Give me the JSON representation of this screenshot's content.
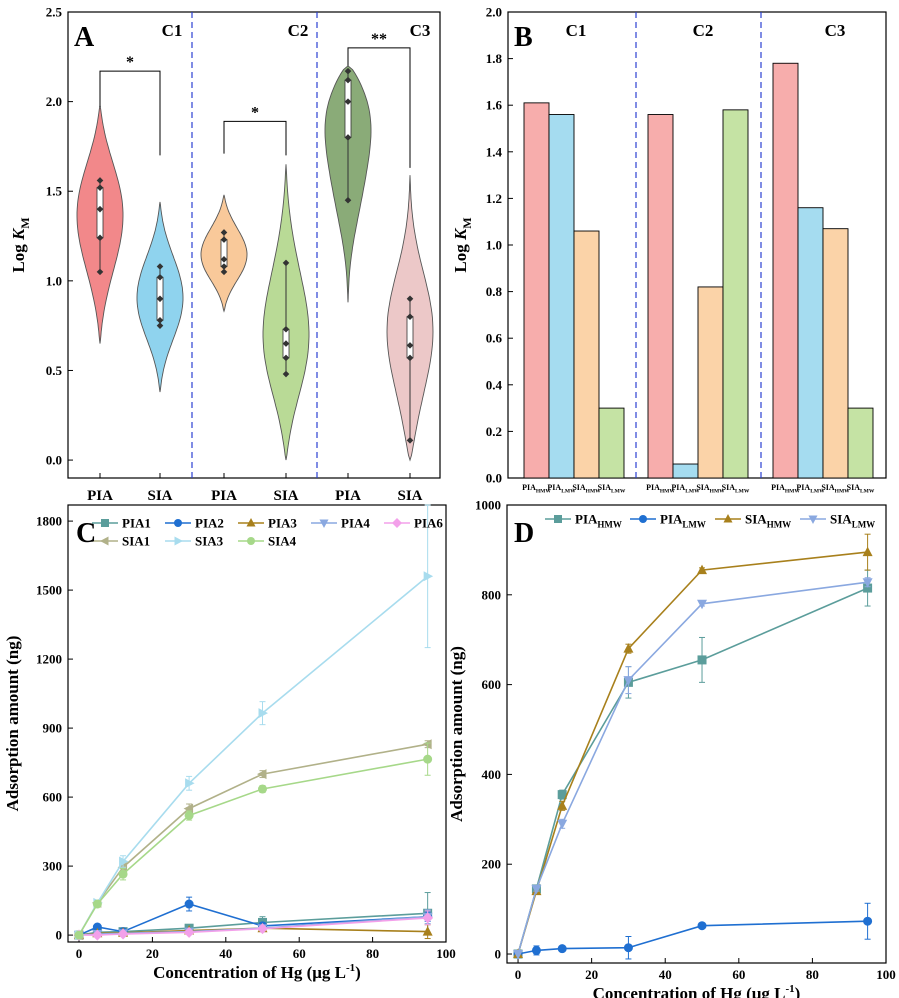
{
  "chart_data": [
    {
      "panel": "A",
      "type": "violin",
      "ylabel_main": "Log ",
      "ylabel_italic": "K",
      "ylabel_sub": "M",
      "ylim": [
        -0.1,
        2.5
      ],
      "yticks": [
        "0.0",
        "0.5",
        "1.0",
        "1.5",
        "2.0",
        "2.5"
      ],
      "groups": [
        "C1",
        "C2",
        "C3"
      ],
      "categories": [
        "PIA",
        "SIA",
        "PIA",
        "SIA",
        "PIA",
        "SIA"
      ],
      "colors": [
        "#f2888a",
        "#8fd3ee",
        "#f9c99a",
        "#b9da96",
        "#8aab78",
        "#ecc8c8"
      ],
      "violins": [
        {
          "group": "C1",
          "cat": "PIA",
          "color": "#f2888a",
          "min": 0.65,
          "max": 1.98,
          "points": [
            1.05,
            1.24,
            1.4,
            1.52,
            1.56
          ]
        },
        {
          "group": "C1",
          "cat": "SIA",
          "color": "#8fd3ee",
          "min": 0.38,
          "max": 1.44,
          "points": [
            0.75,
            0.78,
            0.9,
            1.02,
            1.08
          ]
        },
        {
          "group": "C2",
          "cat": "PIA",
          "color": "#f9c99a",
          "min": 0.83,
          "max": 1.48,
          "points": [
            1.05,
            1.08,
            1.12,
            1.23,
            1.27
          ]
        },
        {
          "group": "C2",
          "cat": "SIA",
          "color": "#b9da96",
          "min": 0.0,
          "max": 1.65,
          "points": [
            0.48,
            0.57,
            0.65,
            0.73,
            1.1
          ]
        },
        {
          "group": "C3",
          "cat": "PIA",
          "color": "#8aab78",
          "min": 0.88,
          "max": 2.2,
          "points": [
            1.45,
            1.8,
            2.0,
            2.12,
            2.17
          ]
        },
        {
          "group": "C3",
          "cat": "SIA",
          "color": "#ecc8c8",
          "min": 0.0,
          "max": 1.59,
          "points": [
            0.11,
            0.57,
            0.64,
            0.8,
            0.9
          ]
        }
      ],
      "significance": [
        {
          "group": "C1",
          "label": "*"
        },
        {
          "group": "C2",
          "label": "*"
        },
        {
          "group": "C3",
          "label": "**"
        }
      ]
    },
    {
      "panel": "B",
      "type": "bar",
      "ylabel_main": "Log ",
      "ylabel_italic": "K",
      "ylabel_sub": "M",
      "ylim": [
        0,
        2.0
      ],
      "yticks": [
        "0.0",
        "0.2",
        "0.4",
        "0.6",
        "0.8",
        "1.0",
        "1.2",
        "1.4",
        "1.6",
        "1.8",
        "2.0"
      ],
      "groups": [
        "C1",
        "C2",
        "C3"
      ],
      "categories": [
        {
          "main": "PIA",
          "sub": "HMW"
        },
        {
          "main": "PIA",
          "sub": "LMW"
        },
        {
          "main": "SIA",
          "sub": "HMW"
        },
        {
          "main": "SIA",
          "sub": "LMW"
        }
      ],
      "colors": [
        "#f7adac",
        "#a5dcf0",
        "#fbd3a8",
        "#c5e3a4"
      ],
      "values": [
        [
          1.61,
          1.56,
          1.06,
          0.3
        ],
        [
          1.56,
          0.06,
          0.82,
          1.58
        ],
        [
          1.78,
          1.16,
          1.07,
          0.3
        ]
      ]
    },
    {
      "panel": "C",
      "type": "line",
      "xlabel_main": "Concentration of Hg (μg L",
      "xlabel_sup": "-1",
      "xlabel_end": ")",
      "ylabel": "Adsorption amount (ng)",
      "xlim": [
        -3,
        100
      ],
      "ylim": [
        -30,
        1870
      ],
      "xticks": [
        0,
        20,
        40,
        60,
        80,
        100
      ],
      "yticks": [
        0,
        300,
        600,
        900,
        1200,
        1500,
        1800
      ],
      "x": [
        0,
        5,
        12,
        30,
        50,
        95
      ],
      "series": [
        {
          "name": "PIA1",
          "color": "#5b9d9b",
          "marker": "square",
          "values": [
            0,
            12,
            15,
            30,
            55,
            95
          ],
          "err": [
            0,
            3,
            5,
            15,
            25,
            90
          ]
        },
        {
          "name": "PIA2",
          "color": "#1f6fd1",
          "marker": "circle",
          "values": [
            0,
            35,
            15,
            135,
            40,
            80
          ],
          "err": [
            0,
            8,
            5,
            30,
            15,
            20
          ]
        },
        {
          "name": "PIA3",
          "color": "#a8801c",
          "marker": "triangle-up",
          "values": [
            0,
            8,
            10,
            20,
            30,
            15
          ],
          "err": [
            0,
            3,
            3,
            5,
            10,
            30
          ]
        },
        {
          "name": "PIA4",
          "color": "#8aa8e0",
          "marker": "triangle-down",
          "values": [
            0,
            5,
            8,
            15,
            30,
            80
          ],
          "err": [
            0,
            3,
            3,
            5,
            10,
            30
          ]
        },
        {
          "name": "PIA6",
          "color": "#f3a0ea",
          "marker": "diamond",
          "values": [
            0,
            0,
            5,
            12,
            28,
            75
          ],
          "err": [
            0,
            3,
            3,
            5,
            10,
            30
          ]
        },
        {
          "name": "SIA1",
          "color": "#b1b189",
          "marker": "triangle-left",
          "values": [
            0,
            140,
            295,
            550,
            700,
            830
          ],
          "err": [
            0,
            10,
            20,
            20,
            15,
            15
          ]
        },
        {
          "name": "SIA3",
          "color": "#a8dcee",
          "marker": "triangle-right",
          "values": [
            0,
            140,
            320,
            660,
            965,
            1560
          ],
          "err": [
            0,
            10,
            25,
            30,
            50,
            310
          ]
        },
        {
          "name": "SIA4",
          "color": "#a6d889",
          "marker": "circle",
          "values": [
            0,
            135,
            265,
            520,
            635,
            765
          ],
          "err": [
            0,
            10,
            25,
            20,
            15,
            70
          ]
        }
      ]
    },
    {
      "panel": "D",
      "type": "line",
      "xlabel_main": "Concentration of Hg (μg L",
      "xlabel_sup": "-1",
      "xlabel_end": ")",
      "ylabel": "Adsorption amount (ng)",
      "xlim": [
        -3,
        100
      ],
      "ylim": [
        -20,
        1000
      ],
      "xticks": [
        0,
        20,
        40,
        60,
        80,
        100
      ],
      "yticks": [
        0,
        200,
        400,
        600,
        800,
        1000
      ],
      "x": [
        0,
        5,
        12,
        30,
        50,
        95
      ],
      "series": [
        {
          "name": "PIA",
          "sub": "HMW",
          "color": "#5b9d9b",
          "marker": "square",
          "values": [
            0,
            145,
            355,
            605,
            655,
            815
          ],
          "err": [
            0,
            5,
            10,
            35,
            50,
            40
          ]
        },
        {
          "name": "PIA",
          "sub": "LMW",
          "color": "#1f6fd1",
          "marker": "circle",
          "values": [
            0,
            8,
            12,
            14,
            63,
            73
          ],
          "err": [
            0,
            10,
            5,
            25,
            5,
            40
          ]
        },
        {
          "name": "SIA",
          "sub": "HMW",
          "color": "#a8801c",
          "marker": "triangle-up",
          "values": [
            0,
            140,
            330,
            680,
            855,
            895
          ],
          "err": [
            0,
            5,
            10,
            10,
            5,
            40
          ]
        },
        {
          "name": "SIA",
          "sub": "LMW",
          "color": "#8aa8e0",
          "marker": "triangle-down",
          "values": [
            0,
            145,
            290,
            610,
            780,
            828
          ],
          "err": [
            0,
            5,
            10,
            30,
            5,
            10
          ]
        }
      ]
    }
  ]
}
